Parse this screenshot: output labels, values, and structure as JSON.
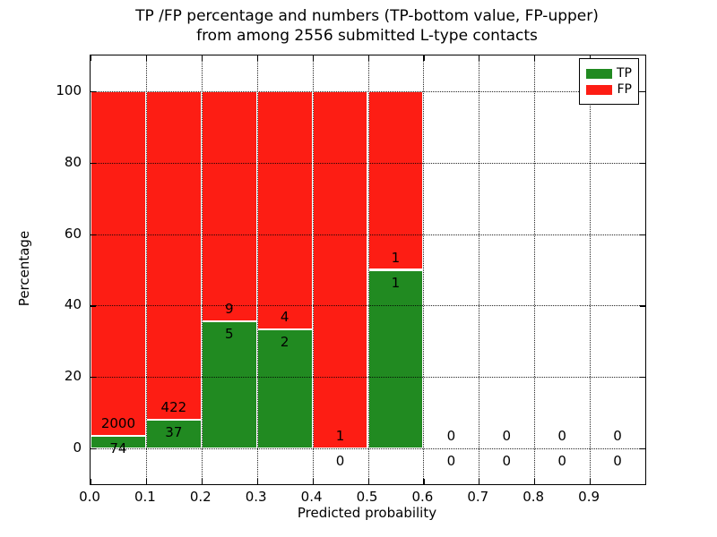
{
  "figure": {
    "title_line1": "TP /FP percentage and numbers (TP-bottom value, FP-upper)",
    "title_line2": "from among 2556 submitted L-type contacts"
  },
  "chart_data": {
    "type": "bar",
    "stacked": true,
    "title": "TP /FP percentage and numbers (TP-bottom value, FP-upper)\nfrom among 2556 submitted L-type contacts",
    "xlabel": "Predicted probability",
    "ylabel": "Percentage",
    "xlim": [
      0.0,
      1.0
    ],
    "ylim": [
      -10,
      110
    ],
    "xtick_labels": [
      "0.0",
      "0.1",
      "0.2",
      "0.3",
      "0.4",
      "0.5",
      "0.6",
      "0.7",
      "0.8",
      "0.9"
    ],
    "xtick_values": [
      0.0,
      0.1,
      0.2,
      0.3,
      0.4,
      0.5,
      0.6,
      0.7,
      0.8,
      0.9
    ],
    "ytick_values": [
      0,
      20,
      40,
      60,
      80,
      100
    ],
    "grid": "dotted black, drawn above bars",
    "total_submitted": 2556,
    "legend": {
      "position": "upper right",
      "entries": [
        {
          "label": "TP",
          "color": "#218a21"
        },
        {
          "label": "FP",
          "color": "#fd1d14"
        }
      ]
    },
    "colors": {
      "tp_green": "#218a21",
      "fp_red": "#fd1d14"
    },
    "bins": [
      {
        "range": [
          0.0,
          0.1
        ],
        "tp_count": 74,
        "fp_count": 2000,
        "tp_pct": 3.57,
        "fp_pct": 96.43
      },
      {
        "range": [
          0.1,
          0.2
        ],
        "tp_count": 37,
        "fp_count": 422,
        "tp_pct": 8.06,
        "fp_pct": 91.94
      },
      {
        "range": [
          0.2,
          0.3
        ],
        "tp_count": 5,
        "fp_count": 9,
        "tp_pct": 35.71,
        "fp_pct": 64.29
      },
      {
        "range": [
          0.3,
          0.4
        ],
        "tp_count": 2,
        "fp_count": 4,
        "tp_pct": 33.33,
        "fp_pct": 66.67
      },
      {
        "range": [
          0.4,
          0.5
        ],
        "tp_count": 0,
        "fp_count": 1,
        "tp_pct": 0,
        "fp_pct": 100
      },
      {
        "range": [
          0.5,
          0.6
        ],
        "tp_count": 1,
        "fp_count": 1,
        "tp_pct": 50,
        "fp_pct": 50
      },
      {
        "range": [
          0.6,
          0.7
        ],
        "tp_count": 0,
        "fp_count": 0,
        "tp_pct": 0,
        "fp_pct": 0
      },
      {
        "range": [
          0.7,
          0.8
        ],
        "tp_count": 0,
        "fp_count": 0,
        "tp_pct": 0,
        "fp_pct": 0
      },
      {
        "range": [
          0.8,
          0.9
        ],
        "tp_count": 0,
        "fp_count": 0,
        "tp_pct": 0,
        "fp_pct": 0
      },
      {
        "range": [
          0.9,
          1.0
        ],
        "tp_count": 0,
        "fp_count": 0,
        "tp_pct": 0,
        "fp_pct": 0
      }
    ]
  }
}
